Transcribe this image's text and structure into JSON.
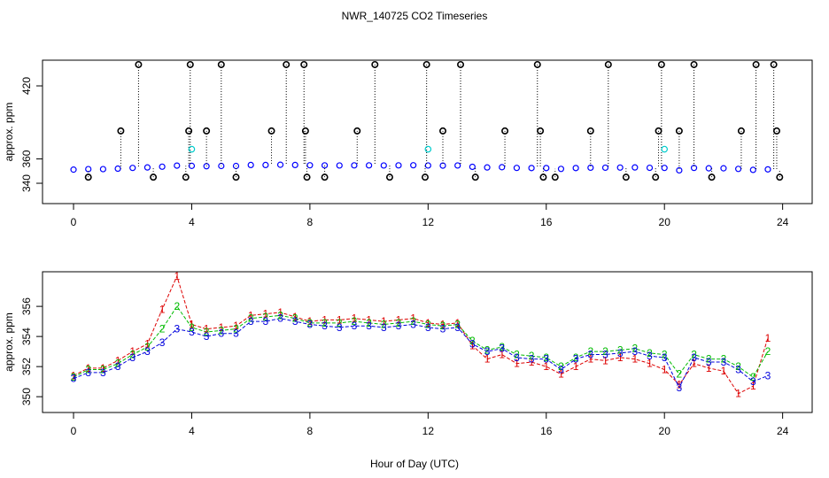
{
  "chart_data": [
    {
      "type": "scatter",
      "title": "NWR_140725  CO2 Timeseries",
      "y_label": "approx. ppm",
      "xlim": [
        -1.05,
        25
      ],
      "xticks": [
        0,
        4,
        8,
        12,
        16,
        20,
        24
      ],
      "ylim": [
        323.3,
        441.1
      ],
      "yticks": [
        340,
        360,
        420
      ],
      "series": [
        {
          "color": "#0000ff",
          "x": [
            0,
            0.5,
            1,
            1.5,
            2,
            2.5,
            3,
            3.5,
            4,
            4.5,
            5,
            5.5,
            6,
            6.5,
            7,
            7.5,
            8,
            8.5,
            9,
            9.5,
            10,
            10.5,
            11,
            11.5,
            12,
            12.5,
            13,
            13.5,
            14,
            14.5,
            15,
            15.5,
            16,
            16.5,
            17,
            17.5,
            18,
            18.5,
            19,
            19.5,
            20,
            20.5,
            21,
            21.5,
            22,
            22.5,
            23,
            23.5
          ],
          "values": [
            351.2,
            351.6,
            351.6,
            352.0,
            352.6,
            353.0,
            353.6,
            354.5,
            354.3,
            354.0,
            354.2,
            354.2,
            355.0,
            355.0,
            355.2,
            355.0,
            354.8,
            354.7,
            354.6,
            354.7,
            354.7,
            354.6,
            354.7,
            354.8,
            354.6,
            354.5,
            354.6,
            353.5,
            353.0,
            353.2,
            352.6,
            352.5,
            352.5,
            351.8,
            352.5,
            352.8,
            352.8,
            352.9,
            353.0,
            352.7,
            352.6,
            350.6,
            352.6,
            352.3,
            352.3,
            351.8,
            351.0,
            351.4
          ]
        },
        {
          "color": "#000000",
          "x": [
            0.5,
            1.6,
            2.2,
            2.7,
            3.8,
            3.9,
            3.95,
            4.5,
            5.0,
            5.5,
            6.7,
            7.2,
            7.8,
            7.85,
            7.9,
            8.5,
            9.6,
            10.2,
            10.7,
            11.9,
            11.95,
            12.5,
            13.1,
            13.6,
            14.6,
            15.7,
            15.8,
            15.9,
            16.3,
            17.5,
            18.1,
            18.7,
            19.7,
            19.8,
            19.9,
            20.5,
            21.0,
            21.6,
            22.6,
            23.1,
            23.7,
            23.8,
            23.9
          ],
          "values": [
            345,
            383,
            437.5,
            345,
            345,
            383,
            437.5,
            383,
            437.5,
            345,
            383,
            437.5,
            437.5,
            383,
            345,
            345,
            383,
            437.5,
            345,
            345,
            437.5,
            383,
            437.5,
            345,
            383,
            437.5,
            383,
            345,
            345,
            383,
            437.5,
            345,
            345,
            383,
            437.5,
            383,
            437.5,
            345,
            383,
            437.5,
            437.5,
            383,
            345
          ]
        },
        {
          "color": "#00cccc",
          "x": [
            4,
            12,
            20
          ],
          "values": [
            368,
            368,
            368
          ]
        }
      ]
    },
    {
      "type": "line",
      "x_label": "Hour of Day (UTC)",
      "y_label": "approx. ppm",
      "xlim": [
        -1.05,
        25
      ],
      "xticks": [
        0,
        4,
        8,
        12,
        16,
        20,
        24
      ],
      "ylim": [
        348.95,
        358.3
      ],
      "yticks": [
        350,
        352,
        354,
        356
      ],
      "x": [
        0,
        0.5,
        1,
        1.5,
        2,
        2.5,
        3,
        3.5,
        4,
        4.5,
        5,
        5.5,
        6,
        6.5,
        7,
        7.5,
        8,
        8.5,
        9,
        9.5,
        10,
        10.5,
        11,
        11.5,
        12,
        12.5,
        13,
        13.5,
        14,
        14.5,
        15,
        15.5,
        16,
        16.5,
        17,
        17.5,
        18,
        18.5,
        19,
        19.5,
        20,
        20.5,
        21,
        21.5,
        22,
        22.5,
        23,
        23.5
      ],
      "series": [
        {
          "name": "1",
          "color": "#dd0000",
          "values": [
            351.4,
            351.9,
            351.9,
            352.4,
            353.0,
            353.5,
            355.8,
            358.0,
            354.8,
            354.5,
            354.6,
            354.7,
            355.4,
            355.5,
            355.6,
            355.3,
            355.0,
            355.1,
            355.1,
            355.2,
            355.1,
            355.0,
            355.1,
            355.2,
            354.9,
            354.8,
            354.9,
            353.4,
            352.5,
            352.8,
            352.2,
            352.3,
            352.0,
            351.5,
            352.0,
            352.5,
            352.4,
            352.6,
            352.5,
            352.2,
            351.8,
            350.8,
            352.2,
            351.9,
            351.7,
            350.2,
            350.7,
            353.9
          ]
        },
        {
          "name": "2",
          "color": "#00bb00",
          "values": [
            351.3,
            351.8,
            351.8,
            352.2,
            352.8,
            353.3,
            354.5,
            356.0,
            354.6,
            354.3,
            354.4,
            354.5,
            355.2,
            355.3,
            355.4,
            355.2,
            354.9,
            354.9,
            354.9,
            355.0,
            354.9,
            354.8,
            354.9,
            355.0,
            354.8,
            354.7,
            354.8,
            353.7,
            353.1,
            353.3,
            352.8,
            352.7,
            352.6,
            352.0,
            352.6,
            353.0,
            353.0,
            353.1,
            353.2,
            352.9,
            352.8,
            351.5,
            352.8,
            352.5,
            352.5,
            352.0,
            351.3,
            353.0
          ]
        },
        {
          "name": "3",
          "color": "#0000dd",
          "values": [
            351.2,
            351.6,
            351.6,
            352.0,
            352.6,
            353.0,
            353.6,
            354.5,
            354.3,
            354.0,
            354.2,
            354.2,
            355.0,
            355.0,
            355.2,
            355.0,
            354.8,
            354.7,
            354.6,
            354.7,
            354.7,
            354.6,
            354.7,
            354.8,
            354.6,
            354.5,
            354.6,
            353.5,
            353.0,
            353.2,
            352.6,
            352.5,
            352.5,
            351.8,
            352.5,
            352.8,
            352.8,
            352.9,
            353.0,
            352.7,
            352.6,
            350.6,
            352.6,
            352.3,
            352.3,
            351.8,
            351.0,
            351.4
          ]
        }
      ]
    }
  ]
}
